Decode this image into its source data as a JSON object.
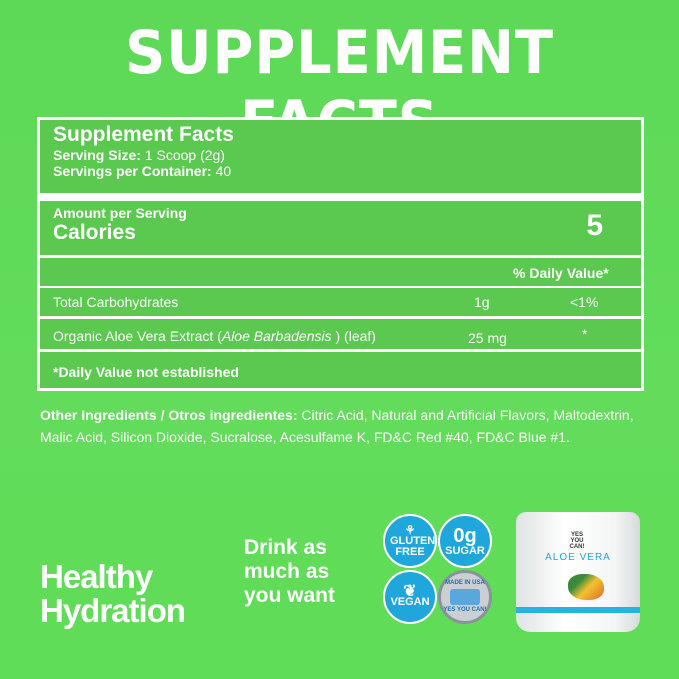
{
  "banner_title": "SUPPLEMENT FACTS",
  "facts": {
    "heading": "Supplement Facts",
    "serving_size_label": "Serving Size:",
    "serving_size_value": "1 Scoop (2g)",
    "servings_label": "Servings per Container:",
    "servings_value": "40",
    "amount_label": "Amount per Serving",
    "calories_label": "Calories",
    "calories_value": "5",
    "dv_header": "% Daily Value*",
    "rows": [
      {
        "name": "Total Carbohydrates",
        "amount": "1g",
        "dv": "<1%"
      },
      {
        "name_prefix": "Organic Aloe Vera Extract (",
        "name_italic": "Aloe Barbadensis",
        "name_suffix": " ) (leaf)",
        "amount": "25 mg",
        "dv": "*"
      }
    ],
    "footnote": "*Daily Value not established"
  },
  "ingredients": {
    "label": "Other Ingredients / Otros ingredientes:",
    "text": " Citric Acid, Natural and Artificial Flavors, Maltodextrin, Malic Acid, Silicon Dioxide, Sucralose, Acesulfame K, FD&C Red #40, FD&C Blue #1."
  },
  "tagline": {
    "line1": "Healthy",
    "line2": "Hydration"
  },
  "drink": {
    "line1": "Drink as",
    "line2": "much as",
    "line3": "you want"
  },
  "badges": {
    "gluten": "GLUTEN FREE",
    "sugar_big": "0g",
    "sugar": "SUGAR",
    "vegan": "VEGAN",
    "usa_top": "MADE IN USA",
    "usa_brand": "YES YOU CAN!"
  },
  "product": {
    "brand": "YES YOU CAN!",
    "name": "ALOE VERA"
  },
  "colors": {
    "background": "#5fdb58",
    "table": "#5bc950",
    "badge": "#1fa7dc"
  }
}
